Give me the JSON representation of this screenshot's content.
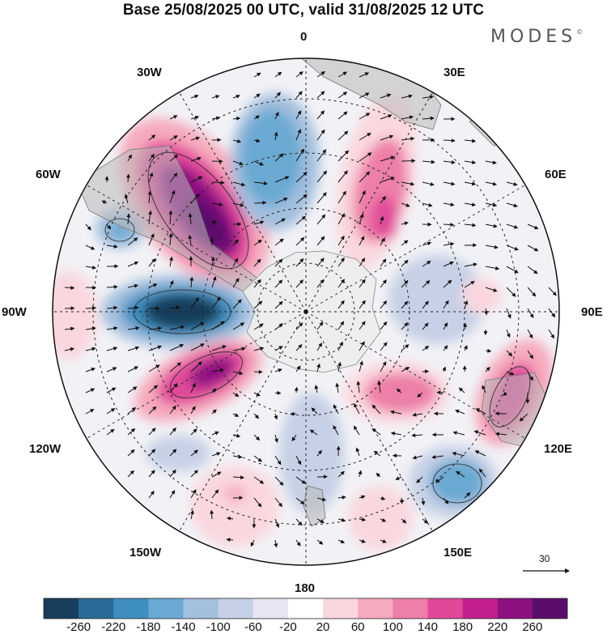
{
  "title": "Base 25/08/2025 00 UTC, valid 31/08/2025 12 UTC",
  "brand": {
    "name": "MODES",
    "mark": "©"
  },
  "longitude_labels": {
    "lon_0": "0",
    "lon_30e": "30E",
    "lon_60e": "60E",
    "lon_90e": "90E",
    "lon_120e": "120E",
    "lon_150e": "150E",
    "lon_180": "180",
    "lon_150w": "150W",
    "lon_120w": "120W",
    "lon_90w": "90W",
    "lon_60w": "60W",
    "lon_30w": "30W"
  },
  "vector_reference": {
    "value": "30"
  },
  "colorbar": {
    "labels": [
      "-260",
      "-220",
      "-180",
      "-140",
      "-100",
      "-60",
      "-20",
      "20",
      "60",
      "100",
      "140",
      "180",
      "220",
      "260"
    ],
    "colors": [
      "#173e5c",
      "#2a6c97",
      "#3f8fc0",
      "#6aa9d2",
      "#a3bfde",
      "#c6d0e6",
      "#e6e6f2",
      "#ffffff",
      "#fad7de",
      "#f6aabd",
      "#ee7fa8",
      "#e1489a",
      "#c4208d",
      "#8e1181",
      "#5a0d6c"
    ]
  },
  "colors": {
    "land": "#b9b9b9",
    "antarctica": "#ececec"
  }
}
